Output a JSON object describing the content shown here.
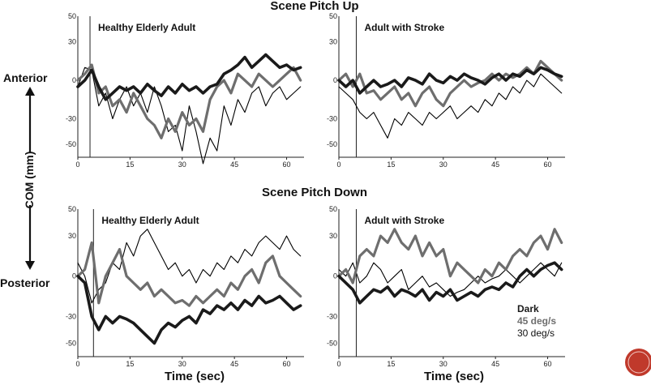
{
  "figure": {
    "ylabel": "COM (mm)",
    "anterior_label": "Anterior",
    "posterior_label": "Posterior",
    "xlabel": "Time (sec)",
    "row_titles": [
      "Scene Pitch Up",
      "Scene Pitch Down"
    ],
    "colors": {
      "dark": "#1a1a1a",
      "v45": "#6e6e6e",
      "v30": "#000000",
      "badge": "#c0392b"
    }
  },
  "legend": {
    "entries": [
      {
        "label": "Dark",
        "color": "#1a1a1a"
      },
      {
        "label": "45 deg/s",
        "color": "#6e6e6e"
      },
      {
        "label": "30 deg/s",
        "color": "#000000"
      }
    ]
  },
  "chart_data": [
    {
      "type": "line",
      "title": "Healthy Elderly Adult",
      "xlim": [
        0,
        65
      ],
      "ylim": [
        -60,
        50
      ],
      "xticks": [
        0,
        15,
        30,
        45,
        60
      ],
      "yticks": [
        50,
        30,
        0,
        -30,
        -50
      ],
      "stimulus_onset": 3.5,
      "series": [
        {
          "name": "Dark",
          "x": [
            0,
            2,
            4,
            6,
            8,
            10,
            12,
            14,
            16,
            18,
            20,
            22,
            24,
            26,
            28,
            30,
            32,
            34,
            36,
            38,
            40,
            42,
            44,
            46,
            48,
            50,
            52,
            54,
            56,
            58,
            60,
            62,
            64
          ],
          "y": [
            -5,
            0,
            8,
            -5,
            -15,
            -10,
            -5,
            -8,
            -5,
            -10,
            -3,
            -8,
            -12,
            -5,
            -10,
            -3,
            -8,
            -5,
            -10,
            -5,
            -3,
            5,
            8,
            12,
            18,
            10,
            15,
            20,
            15,
            10,
            12,
            8,
            10
          ]
        },
        {
          "name": "45 deg/s",
          "x": [
            0,
            2,
            4,
            6,
            8,
            10,
            12,
            14,
            16,
            18,
            20,
            22,
            24,
            26,
            28,
            30,
            32,
            34,
            36,
            38,
            40,
            42,
            44,
            46,
            48,
            50,
            52,
            54,
            56,
            58,
            60,
            62,
            64
          ],
          "y": [
            0,
            5,
            12,
            -10,
            -5,
            -20,
            -15,
            -25,
            -10,
            -20,
            -30,
            -35,
            -45,
            -30,
            -40,
            -25,
            -35,
            -30,
            -40,
            -15,
            -5,
            0,
            -10,
            5,
            0,
            -5,
            5,
            0,
            -5,
            0,
            5,
            10,
            0
          ]
        },
        {
          "name": "30 deg/s",
          "x": [
            0,
            2,
            4,
            6,
            8,
            10,
            12,
            14,
            16,
            18,
            20,
            22,
            24,
            26,
            28,
            30,
            32,
            34,
            36,
            38,
            40,
            42,
            44,
            46,
            48,
            50,
            52,
            54,
            56,
            58,
            60,
            62,
            64
          ],
          "y": [
            -5,
            10,
            8,
            -20,
            -10,
            -30,
            -15,
            -5,
            -20,
            -10,
            -25,
            -5,
            -20,
            -40,
            -35,
            -55,
            -20,
            -40,
            -65,
            -45,
            -55,
            -20,
            -35,
            -15,
            -25,
            -10,
            -5,
            -20,
            -10,
            -5,
            -15,
            -10,
            -5
          ]
        }
      ]
    },
    {
      "type": "line",
      "title": "Adult with Stroke",
      "xlim": [
        0,
        65
      ],
      "ylim": [
        -60,
        50
      ],
      "xticks": [
        0,
        15,
        30,
        45,
        60
      ],
      "yticks": [
        50,
        30,
        0,
        -30,
        -50
      ],
      "stimulus_onset": 5,
      "series": [
        {
          "name": "Dark",
          "x": [
            0,
            2,
            4,
            6,
            8,
            10,
            12,
            14,
            16,
            18,
            20,
            22,
            24,
            26,
            28,
            30,
            32,
            34,
            36,
            38,
            40,
            42,
            44,
            46,
            48,
            50,
            52,
            54,
            56,
            58,
            60,
            62,
            64
          ],
          "y": [
            0,
            -5,
            0,
            -10,
            -5,
            0,
            -5,
            -3,
            0,
            -5,
            2,
            0,
            -3,
            5,
            0,
            -2,
            3,
            0,
            5,
            2,
            0,
            -3,
            2,
            5,
            0,
            5,
            3,
            8,
            5,
            10,
            8,
            5,
            3
          ]
        },
        {
          "name": "45 deg/s",
          "x": [
            0,
            2,
            4,
            6,
            8,
            10,
            12,
            14,
            16,
            18,
            20,
            22,
            24,
            26,
            28,
            30,
            32,
            34,
            36,
            38,
            40,
            42,
            44,
            46,
            48,
            50,
            52,
            54,
            56,
            58,
            60,
            62,
            64
          ],
          "y": [
            0,
            5,
            -5,
            5,
            -10,
            -8,
            -15,
            -10,
            -5,
            -15,
            -10,
            -20,
            -10,
            -5,
            -15,
            -20,
            -10,
            -5,
            0,
            -5,
            -2,
            0,
            5,
            0,
            5,
            2,
            5,
            10,
            5,
            15,
            10,
            5,
            0
          ]
        },
        {
          "name": "30 deg/s",
          "x": [
            0,
            2,
            4,
            6,
            8,
            10,
            12,
            14,
            16,
            18,
            20,
            22,
            24,
            26,
            28,
            30,
            32,
            34,
            36,
            38,
            40,
            42,
            44,
            46,
            48,
            50,
            52,
            54,
            56,
            58,
            60,
            62,
            64
          ],
          "y": [
            -5,
            -10,
            -15,
            -25,
            -30,
            -25,
            -35,
            -45,
            -30,
            -35,
            -25,
            -30,
            -35,
            -25,
            -30,
            -25,
            -20,
            -30,
            -25,
            -20,
            -25,
            -15,
            -20,
            -10,
            -15,
            -5,
            -10,
            0,
            -5,
            5,
            0,
            -5,
            -10
          ]
        }
      ]
    },
    {
      "type": "line",
      "title": "Healthy Elderly Adult",
      "xlim": [
        0,
        65
      ],
      "ylim": [
        -60,
        50
      ],
      "xticks": [
        0,
        15,
        30,
        45,
        60
      ],
      "yticks": [
        50,
        30,
        0,
        -30,
        -50
      ],
      "stimulus_onset": 4.5,
      "series": [
        {
          "name": "Dark",
          "x": [
            0,
            2,
            4,
            6,
            8,
            10,
            12,
            14,
            16,
            18,
            20,
            22,
            24,
            26,
            28,
            30,
            32,
            34,
            36,
            38,
            40,
            42,
            44,
            46,
            48,
            50,
            52,
            54,
            56,
            58,
            60,
            62,
            64
          ],
          "y": [
            0,
            -5,
            -30,
            -40,
            -30,
            -35,
            -30,
            -32,
            -35,
            -40,
            -45,
            -50,
            -40,
            -35,
            -38,
            -33,
            -30,
            -35,
            -25,
            -28,
            -22,
            -25,
            -20,
            -25,
            -18,
            -22,
            -15,
            -20,
            -18,
            -15,
            -20,
            -25,
            -22
          ]
        },
        {
          "name": "45 deg/s",
          "x": [
            0,
            2,
            4,
            6,
            8,
            10,
            12,
            14,
            16,
            18,
            20,
            22,
            24,
            26,
            28,
            30,
            32,
            34,
            36,
            38,
            40,
            42,
            44,
            46,
            48,
            50,
            52,
            54,
            56,
            58,
            60,
            62,
            64
          ],
          "y": [
            0,
            5,
            25,
            -20,
            0,
            10,
            20,
            0,
            -5,
            -10,
            -5,
            -15,
            -10,
            -15,
            -20,
            -18,
            -22,
            -15,
            -20,
            -15,
            -10,
            -15,
            -5,
            -10,
            0,
            5,
            -5,
            10,
            15,
            0,
            -5,
            -10,
            -15
          ]
        },
        {
          "name": "30 deg/s",
          "x": [
            0,
            2,
            4,
            6,
            8,
            10,
            12,
            14,
            16,
            18,
            20,
            22,
            24,
            26,
            28,
            30,
            32,
            34,
            36,
            38,
            40,
            42,
            44,
            46,
            48,
            50,
            52,
            54,
            56,
            58,
            60,
            62,
            64
          ],
          "y": [
            10,
            0,
            -20,
            -10,
            -5,
            10,
            5,
            25,
            15,
            30,
            35,
            25,
            15,
            5,
            10,
            0,
            5,
            -5,
            5,
            0,
            10,
            5,
            15,
            10,
            20,
            15,
            25,
            30,
            25,
            20,
            30,
            20,
            15
          ]
        }
      ]
    },
    {
      "type": "line",
      "title": "Adult with Stroke",
      "xlim": [
        0,
        65
      ],
      "ylim": [
        -60,
        50
      ],
      "xticks": [
        0,
        15,
        30,
        45,
        60
      ],
      "yticks": [
        50,
        30,
        0,
        -30,
        -50
      ],
      "stimulus_onset": 5,
      "series": [
        {
          "name": "Dark",
          "x": [
            0,
            2,
            4,
            6,
            8,
            10,
            12,
            14,
            16,
            18,
            20,
            22,
            24,
            26,
            28,
            30,
            32,
            34,
            36,
            38,
            40,
            42,
            44,
            46,
            48,
            50,
            52,
            54,
            56,
            58,
            60,
            62,
            64
          ],
          "y": [
            0,
            -5,
            -10,
            -20,
            -15,
            -10,
            -12,
            -8,
            -15,
            -10,
            -12,
            -15,
            -10,
            -18,
            -12,
            -15,
            -10,
            -18,
            -15,
            -12,
            -15,
            -10,
            -8,
            -10,
            -5,
            -8,
            0,
            5,
            0,
            5,
            8,
            10,
            5
          ]
        },
        {
          "name": "45 deg/s",
          "x": [
            0,
            2,
            4,
            6,
            8,
            10,
            12,
            14,
            16,
            18,
            20,
            22,
            24,
            26,
            28,
            30,
            32,
            34,
            36,
            38,
            40,
            42,
            44,
            46,
            48,
            50,
            52,
            54,
            56,
            58,
            60,
            62,
            64
          ],
          "y": [
            0,
            5,
            -5,
            15,
            20,
            15,
            30,
            25,
            35,
            25,
            20,
            30,
            15,
            25,
            15,
            20,
            0,
            10,
            5,
            0,
            -5,
            5,
            0,
            10,
            5,
            15,
            20,
            15,
            25,
            30,
            20,
            35,
            25
          ]
        },
        {
          "name": "30 deg/s",
          "x": [
            0,
            2,
            4,
            6,
            8,
            10,
            12,
            14,
            16,
            18,
            20,
            22,
            24,
            26,
            28,
            30,
            32,
            34,
            36,
            38,
            40,
            42,
            44,
            46,
            48,
            50,
            52,
            54,
            56,
            58,
            60,
            62,
            64
          ],
          "y": [
            5,
            0,
            10,
            -5,
            0,
            10,
            5,
            -5,
            0,
            5,
            -10,
            -5,
            0,
            -8,
            -5,
            -10,
            -15,
            -12,
            -10,
            -5,
            0,
            -5,
            -2,
            0,
            5,
            0,
            -5,
            0,
            5,
            10,
            5,
            0,
            10
          ]
        }
      ]
    }
  ]
}
